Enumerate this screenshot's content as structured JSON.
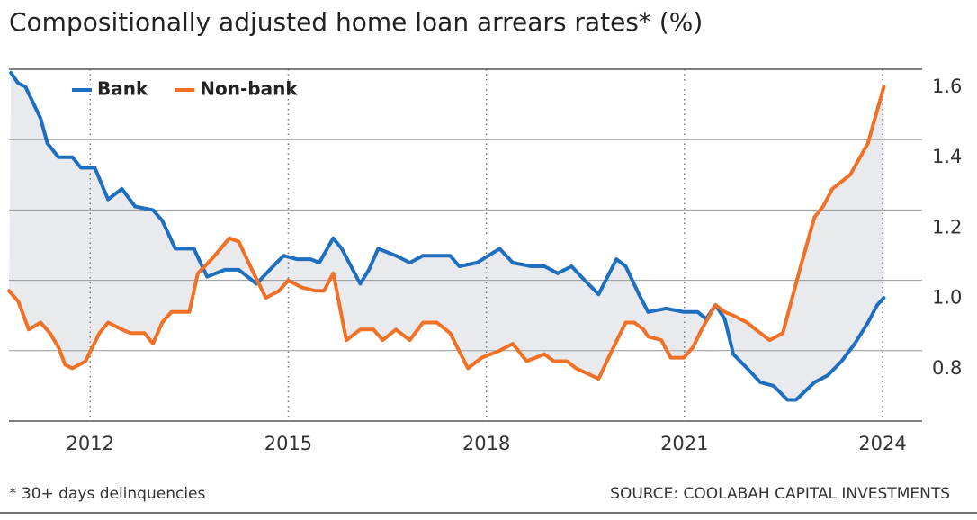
{
  "chart_data": {
    "type": "line",
    "title": "Compositionally adjusted home loan arrears rates* (%)",
    "footnote": "* 30+ days delinquencies",
    "source": "SOURCE: COOLABAH CAPITAL INVESTMENTS",
    "xlim": [
      2010.77,
      2024.6
    ],
    "xticks": [
      2012,
      2015,
      2018,
      2021,
      2024
    ],
    "ylim": [
      0.6,
      1.6
    ],
    "yticks": [
      0.8,
      {
        "value": 1,
        "label": "1.0"
      },
      1.2,
      1.4,
      1.6
    ],
    "grid": true,
    "legend": "top-left",
    "shade_between": true,
    "series": [
      {
        "name": "Bank",
        "color": "#1f6fc0",
        "x": [
          2010.8,
          2010.91,
          2011.02,
          2011.25,
          2011.35,
          2011.52,
          2011.73,
          2011.86,
          2012.07,
          2012.27,
          2012.48,
          2012.68,
          2012.95,
          2013.09,
          2013.29,
          2013.57,
          2013.77,
          2014.04,
          2014.25,
          2014.52,
          2014.72,
          2014.93,
          2015.13,
          2015.34,
          2015.47,
          2015.68,
          2015.81,
          2015.95,
          2016.09,
          2016.22,
          2016.36,
          2016.63,
          2016.84,
          2017.04,
          2017.45,
          2017.59,
          2017.86,
          2018.2,
          2018.4,
          2018.68,
          2018.88,
          2019.08,
          2019.29,
          2019.49,
          2019.7,
          2019.97,
          2020.11,
          2020.31,
          2020.45,
          2020.72,
          2020.99,
          2021.2,
          2021.33,
          2021.47,
          2021.61,
          2021.74,
          2021.95,
          2022.15,
          2022.35,
          2022.56,
          2022.69,
          2022.97,
          2023.17,
          2023.38,
          2023.58,
          2023.78,
          2023.92,
          2024.02
        ],
        "values": [
          1.59,
          1.56,
          1.55,
          1.46,
          1.39,
          1.35,
          1.35,
          1.32,
          1.32,
          1.23,
          1.26,
          1.21,
          1.2,
          1.17,
          1.09,
          1.09,
          1.01,
          1.03,
          1.03,
          0.99,
          1.03,
          1.07,
          1.06,
          1.06,
          1.05,
          1.12,
          1.09,
          1.04,
          0.99,
          1.03,
          1.09,
          1.07,
          1.05,
          1.07,
          1.07,
          1.04,
          1.05,
          1.09,
          1.05,
          1.04,
          1.04,
          1.02,
          1.04,
          1.0,
          0.96,
          1.06,
          1.04,
          0.96,
          0.91,
          0.92,
          0.91,
          0.91,
          0.89,
          0.93,
          0.89,
          0.79,
          0.75,
          0.71,
          0.7,
          0.66,
          0.66,
          0.71,
          0.73,
          0.77,
          0.82,
          0.88,
          0.93,
          0.95
        ]
      },
      {
        "name": "Non-bank",
        "color": "#f07026",
        "x": [
          2010.77,
          2010.91,
          2011.07,
          2011.25,
          2011.39,
          2011.52,
          2011.62,
          2011.73,
          2011.93,
          2012.14,
          2012.27,
          2012.48,
          2012.61,
          2012.82,
          2012.95,
          2013.09,
          2013.23,
          2013.5,
          2013.63,
          2013.84,
          2014.11,
          2014.25,
          2014.45,
          2014.66,
          2014.86,
          2015.0,
          2015.2,
          2015.41,
          2015.54,
          2015.68,
          2015.88,
          2016.09,
          2016.29,
          2016.43,
          2016.63,
          2016.84,
          2017.04,
          2017.25,
          2017.45,
          2017.72,
          2017.93,
          2018.2,
          2018.4,
          2018.61,
          2018.88,
          2019.02,
          2019.22,
          2019.36,
          2019.7,
          2019.9,
          2020.11,
          2020.24,
          2020.38,
          2020.45,
          2020.65,
          2020.79,
          2020.99,
          2021.13,
          2021.26,
          2021.47,
          2021.61,
          2021.74,
          2021.95,
          2022.08,
          2022.29,
          2022.49,
          2022.76,
          2022.97,
          2023.1,
          2023.24,
          2023.51,
          2023.78,
          2024.02
        ],
        "values": [
          0.97,
          0.94,
          0.86,
          0.88,
          0.85,
          0.81,
          0.76,
          0.75,
          0.77,
          0.85,
          0.88,
          0.86,
          0.85,
          0.85,
          0.82,
          0.88,
          0.91,
          0.91,
          1.02,
          1.06,
          1.12,
          1.11,
          1.03,
          0.95,
          0.97,
          1.0,
          0.98,
          0.97,
          0.97,
          1.02,
          0.83,
          0.86,
          0.86,
          0.83,
          0.86,
          0.83,
          0.88,
          0.88,
          0.85,
          0.75,
          0.78,
          0.8,
          0.82,
          0.77,
          0.79,
          0.77,
          0.77,
          0.75,
          0.72,
          0.8,
          0.88,
          0.88,
          0.86,
          0.84,
          0.83,
          0.78,
          0.78,
          0.81,
          0.86,
          0.93,
          0.91,
          0.9,
          0.88,
          0.86,
          0.83,
          0.85,
          1.04,
          1.18,
          1.21,
          1.26,
          1.3,
          1.39,
          1.55
        ]
      }
    ]
  }
}
